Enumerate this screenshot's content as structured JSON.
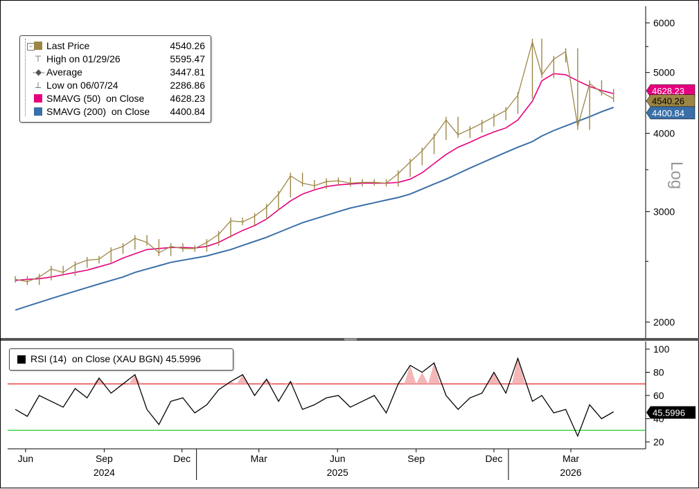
{
  "chart_data": [
    {
      "type": "line",
      "title": "",
      "y_scale_label": "Log",
      "ylim": [
        1900,
        6100
      ],
      "y_ticks": [
        "6000",
        "5000",
        "4000",
        "3000",
        "2000"
      ],
      "x_ticks": [
        "Jun",
        "Sep",
        "Dec",
        "Mar",
        "Jun",
        "Sep",
        "Dec",
        "Mar"
      ],
      "x_years": [
        "2024",
        "2025",
        "2026"
      ],
      "grid": false,
      "legend_position": "top-left",
      "legend": [
        {
          "label": "Last Price",
          "value": "4540.26",
          "color": "#9c8646"
        },
        {
          "label": "High on 01/29/26",
          "value": "5595.47"
        },
        {
          "label": "Average",
          "value": "3447.81"
        },
        {
          "label": "Low on 06/07/24",
          "value": "2286.86"
        },
        {
          "label": "SMAVG (50)  on Close",
          "value": "4628.23",
          "color": "#e6007e"
        },
        {
          "label": "SMAVG (200)  on Close",
          "value": "4400.84",
          "color": "#3a6fa8"
        }
      ],
      "end_tags": [
        {
          "value": "4628.23",
          "color": "#e6007e"
        },
        {
          "value": "4540.26",
          "color": "#9c8646"
        },
        {
          "value": "4400.84",
          "color": "#3a6fa8"
        }
      ],
      "x": [
        "2024-06-03",
        "2024-06-17",
        "2024-07-01",
        "2024-07-15",
        "2024-07-29",
        "2024-08-12",
        "2024-08-26",
        "2024-09-09",
        "2024-09-23",
        "2024-10-07",
        "2024-10-21",
        "2024-11-04",
        "2024-11-18",
        "2024-12-02",
        "2024-12-16",
        "2024-12-30",
        "2025-01-13",
        "2025-01-27",
        "2025-02-10",
        "2025-02-24",
        "2025-03-10",
        "2025-03-24",
        "2025-04-07",
        "2025-04-21",
        "2025-05-05",
        "2025-05-19",
        "2025-06-02",
        "2025-06-16",
        "2025-06-30",
        "2025-07-14",
        "2025-07-28",
        "2025-08-11",
        "2025-08-25",
        "2025-09-08",
        "2025-09-22",
        "2025-10-06",
        "2025-10-20",
        "2025-11-03",
        "2025-11-17",
        "2025-12-01",
        "2025-12-15",
        "2025-12-29",
        "2026-01-12",
        "2026-01-29",
        "2026-02-09",
        "2026-02-23",
        "2026-03-09",
        "2026-03-23",
        "2026-04-06",
        "2026-04-20",
        "2026-05-04"
      ],
      "series": [
        {
          "name": "Last Price",
          "color": "#9c8646",
          "values": [
            2340,
            2320,
            2360,
            2430,
            2400,
            2470,
            2510,
            2520,
            2600,
            2640,
            2720,
            2680,
            2580,
            2640,
            2620,
            2620,
            2680,
            2760,
            2900,
            2890,
            2950,
            3050,
            3200,
            3420,
            3330,
            3300,
            3350,
            3360,
            3330,
            3340,
            3340,
            3330,
            3450,
            3600,
            3750,
            3950,
            4200,
            3980,
            4060,
            4150,
            4250,
            4350,
            4600,
            5595,
            4960,
            5250,
            5400,
            4100,
            4800,
            4650,
            4540
          ]
        },
        {
          "name": "SMAVG (50)  on Close",
          "color": "#e6007e",
          "values": [
            2330,
            2340,
            2345,
            2360,
            2380,
            2400,
            2420,
            2450,
            2480,
            2530,
            2570,
            2610,
            2620,
            2630,
            2630,
            2625,
            2640,
            2680,
            2740,
            2800,
            2850,
            2920,
            3020,
            3120,
            3200,
            3250,
            3290,
            3310,
            3320,
            3330,
            3330,
            3330,
            3340,
            3380,
            3460,
            3580,
            3700,
            3800,
            3870,
            3950,
            4020,
            4080,
            4200,
            4500,
            4850,
            4980,
            4960,
            4850,
            4750,
            4680,
            4628
          ]
        },
        {
          "name": "SMAVG (200)  on Close",
          "color": "#3a6fa8",
          "values": [
            2090,
            2120,
            2150,
            2180,
            2210,
            2240,
            2270,
            2300,
            2330,
            2360,
            2400,
            2430,
            2460,
            2490,
            2510,
            2530,
            2550,
            2580,
            2610,
            2650,
            2690,
            2730,
            2780,
            2830,
            2880,
            2920,
            2960,
            3000,
            3040,
            3070,
            3100,
            3130,
            3160,
            3200,
            3260,
            3320,
            3380,
            3450,
            3520,
            3590,
            3660,
            3730,
            3800,
            3880,
            3960,
            4040,
            4110,
            4180,
            4250,
            4330,
            4400
          ]
        }
      ]
    },
    {
      "type": "line",
      "title": "",
      "ylim": [
        15,
        100
      ],
      "y_ticks": [
        "100",
        "80",
        "60",
        "40",
        "20"
      ],
      "overbought": 70,
      "oversold": 30,
      "legend": [
        {
          "label": "RSI (14)  on Close (XAU BGN)",
          "value": "45.5996",
          "color": "#000000"
        }
      ],
      "end_tag": "45.5996",
      "x": [
        "2024-06-03",
        "2024-06-17",
        "2024-07-01",
        "2024-07-15",
        "2024-07-29",
        "2024-08-12",
        "2024-08-26",
        "2024-09-09",
        "2024-09-23",
        "2024-10-07",
        "2024-10-21",
        "2024-11-04",
        "2024-11-18",
        "2024-12-02",
        "2024-12-16",
        "2024-12-30",
        "2025-01-13",
        "2025-01-27",
        "2025-02-10",
        "2025-02-24",
        "2025-03-10",
        "2025-03-24",
        "2025-04-07",
        "2025-04-21",
        "2025-05-05",
        "2025-05-19",
        "2025-06-02",
        "2025-06-16",
        "2025-06-30",
        "2025-07-14",
        "2025-07-28",
        "2025-08-11",
        "2025-08-25",
        "2025-09-08",
        "2025-09-22",
        "2025-10-06",
        "2025-10-20",
        "2025-11-03",
        "2025-11-17",
        "2025-12-01",
        "2025-12-15",
        "2025-12-29",
        "2026-01-12",
        "2026-01-29",
        "2026-02-09",
        "2026-02-23",
        "2026-03-09",
        "2026-03-23",
        "2026-04-06",
        "2026-04-20",
        "2026-05-04"
      ],
      "series": [
        {
          "name": "RSI (14)  on Close (XAU BGN)",
          "color": "#000000",
          "values": [
            48,
            42,
            60,
            55,
            50,
            66,
            58,
            75,
            62,
            70,
            78,
            48,
            35,
            55,
            58,
            45,
            52,
            65,
            72,
            78,
            60,
            74,
            55,
            72,
            48,
            52,
            58,
            60,
            50,
            55,
            60,
            45,
            70,
            86,
            80,
            88,
            60,
            48,
            58,
            62,
            80,
            62,
            92,
            55,
            60,
            45,
            48,
            25,
            52,
            40,
            46
          ]
        }
      ]
    }
  ]
}
